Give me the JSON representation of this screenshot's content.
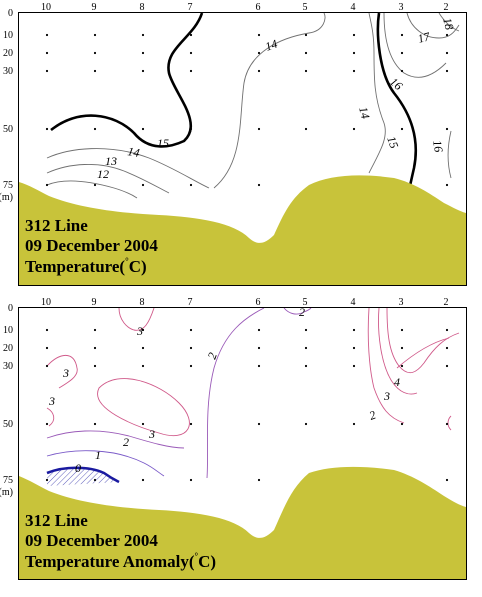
{
  "chart_data": [
    {
      "type": "contour",
      "title": "312 Line",
      "date": "09 December 2004",
      "variable_label": "Temperature(",
      "variable_unit": "C)",
      "unit_symbol": "°",
      "x_ticks": [
        "10",
        "9",
        "8",
        "7",
        "6",
        "5",
        "4",
        "3",
        "2"
      ],
      "y_ticks": [
        "0",
        "10",
        "20",
        "30",
        "50",
        "75"
      ],
      "y_unit": "(m)",
      "contours": [
        {
          "level": "12",
          "label": "12",
          "bold": false,
          "color": "#707070"
        },
        {
          "level": "13",
          "label": "13",
          "bold": false,
          "color": "#707070"
        },
        {
          "level": "14",
          "label": "14",
          "bold": false,
          "color": "#707070"
        },
        {
          "level": "15",
          "label": "15",
          "bold": true,
          "color": "#000000"
        },
        {
          "level": "16",
          "label": "16",
          "bold": false,
          "color": "#707070"
        },
        {
          "level": "17",
          "label": "17",
          "bold": false,
          "color": "#707070"
        },
        {
          "level": "18",
          "label": "18",
          "bold": false,
          "color": "#707070"
        }
      ],
      "colors": {
        "seafloor": "#c8c33a",
        "contour": "#707070",
        "bold_contour": "#000000"
      }
    },
    {
      "type": "contour",
      "title": "312 Line",
      "date": "09 December 2004",
      "variable_label": "Temperature Anomaly(",
      "variable_unit": "C)",
      "unit_symbol": "°",
      "x_ticks": [
        "10",
        "9",
        "8",
        "7",
        "6",
        "5",
        "4",
        "3",
        "2"
      ],
      "y_ticks": [
        "0",
        "10",
        "20",
        "30",
        "50",
        "75"
      ],
      "y_unit": "(m)",
      "contours": [
        {
          "level": "0",
          "label": "0",
          "bold": true,
          "color": "#1a1aa0"
        },
        {
          "level": "1",
          "label": "1",
          "bold": false,
          "color": "#7a5ac8"
        },
        {
          "level": "2",
          "label": "2",
          "bold": false,
          "color": "#9a5ab8"
        },
        {
          "level": "3",
          "label": "3",
          "bold": false,
          "color": "#d05a8a"
        },
        {
          "level": "4",
          "label": "4",
          "bold": false,
          "color": "#d05a8a"
        }
      ],
      "colors": {
        "seafloor": "#c8c33a",
        "negative_hatch": "#1a1aa0"
      }
    }
  ]
}
